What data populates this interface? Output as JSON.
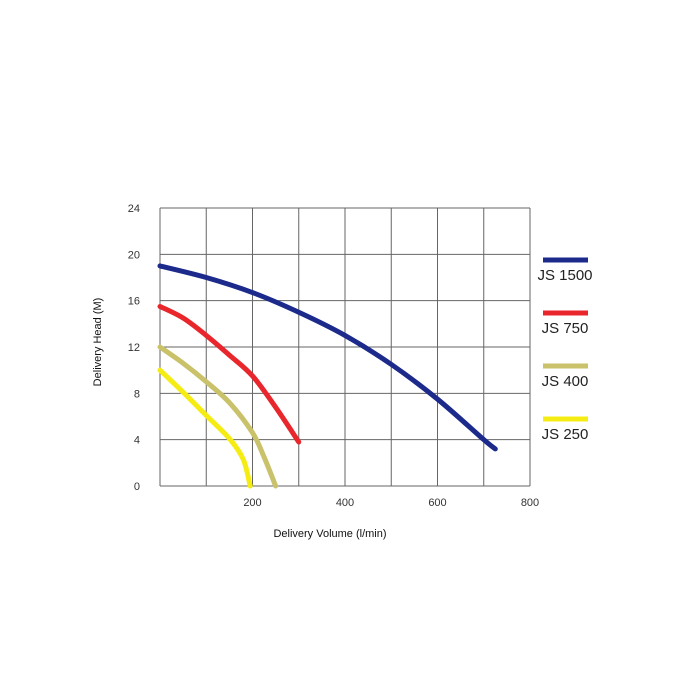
{
  "chart_data": {
    "type": "line",
    "title": "",
    "xlabel": "Delivery Volume (l/min)",
    "ylabel": "Delivery Head (M)",
    "xlim": [
      0,
      800
    ],
    "ylim": [
      0,
      24
    ],
    "x_ticks": [
      200,
      400,
      600,
      800
    ],
    "y_ticks": [
      0,
      4,
      8,
      12,
      16,
      20,
      24
    ],
    "grid": true,
    "legend_position": "right",
    "series": [
      {
        "name": "JS 1500",
        "color": "#1c2a8c",
        "points": [
          [
            0,
            19
          ],
          [
            100,
            18
          ],
          [
            200,
            16.7
          ],
          [
            300,
            15
          ],
          [
            400,
            13
          ],
          [
            500,
            10.5
          ],
          [
            600,
            7.5
          ],
          [
            700,
            4
          ],
          [
            725,
            3.2
          ]
        ]
      },
      {
        "name": "JS 750",
        "color": "#e8262b",
        "points": [
          [
            0,
            15.5
          ],
          [
            50,
            14.5
          ],
          [
            100,
            13
          ],
          [
            150,
            11.3
          ],
          [
            200,
            9.5
          ],
          [
            250,
            6.8
          ],
          [
            300,
            3.8
          ]
        ]
      },
      {
        "name": "JS 400",
        "color": "#c9c26a",
        "points": [
          [
            0,
            12
          ],
          [
            50,
            10.6
          ],
          [
            100,
            9
          ],
          [
            150,
            7.2
          ],
          [
            200,
            4.6
          ],
          [
            225,
            2.5
          ],
          [
            250,
            0
          ]
        ]
      },
      {
        "name": "JS 250",
        "color": "#f5ec13",
        "points": [
          [
            0,
            10
          ],
          [
            50,
            8.1
          ],
          [
            100,
            6.1
          ],
          [
            150,
            4.1
          ],
          [
            180,
            2.3
          ],
          [
            195,
            0
          ]
        ]
      }
    ]
  }
}
